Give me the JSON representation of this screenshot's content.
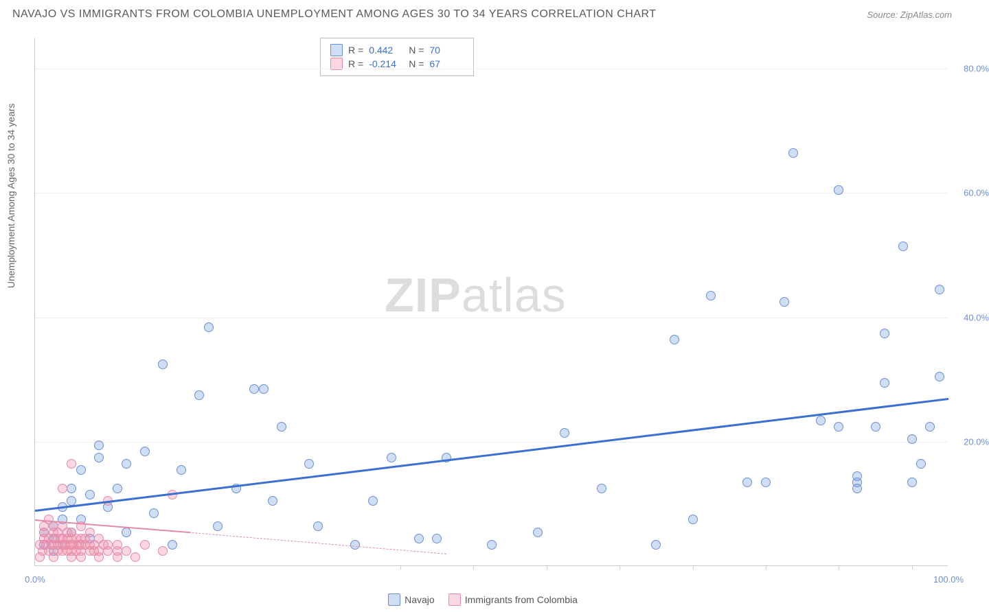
{
  "title": "NAVAJO VS IMMIGRANTS FROM COLOMBIA UNEMPLOYMENT AMONG AGES 30 TO 34 YEARS CORRELATION CHART",
  "source": "Source: ZipAtlas.com",
  "ylabel": "Unemployment Among Ages 30 to 34 years",
  "watermark_bold": "ZIP",
  "watermark_light": "atlas",
  "chart": {
    "type": "scatter",
    "background_color": "#ffffff",
    "grid_color": "#eeeeee",
    "axis_color": "#cccccc",
    "xlim": [
      0,
      100
    ],
    "ylim": [
      0,
      85
    ],
    "xticks": [
      0,
      100
    ],
    "xtick_labels": [
      "0.0%",
      "100.0%"
    ],
    "xtick_minors": [
      40,
      48,
      56,
      64,
      72,
      80,
      88,
      96
    ],
    "yticks": [
      20,
      40,
      60,
      80
    ],
    "ytick_labels": [
      "20.0%",
      "40.0%",
      "60.0%",
      "80.0%"
    ],
    "tick_label_color": "#6b8fd6",
    "label_fontsize": 14,
    "title_fontsize": 16,
    "marker_size": 14,
    "series": [
      {
        "name": "Navajo",
        "marker_fill": "rgba(120,160,220,0.35)",
        "marker_stroke": "#6b8fd6",
        "r": 0.442,
        "n": 70,
        "trend": {
          "x1": 0,
          "y1": 9,
          "x2": 100,
          "y2": 27,
          "width": 2.5,
          "color": "#3b6fd0",
          "dash": "solid"
        },
        "points": [
          [
            1,
            5
          ],
          [
            1,
            7
          ],
          [
            2,
            4
          ],
          [
            2,
            6
          ],
          [
            2,
            8
          ],
          [
            3,
            5
          ],
          [
            3,
            9
          ],
          [
            3,
            11
          ],
          [
            4,
            7
          ],
          [
            4,
            12
          ],
          [
            4,
            14
          ],
          [
            5,
            9
          ],
          [
            5,
            17
          ],
          [
            6,
            13
          ],
          [
            6,
            6
          ],
          [
            7,
            19
          ],
          [
            7,
            21
          ],
          [
            8,
            11
          ],
          [
            9,
            14
          ],
          [
            10,
            7
          ],
          [
            10,
            18
          ],
          [
            12,
            20
          ],
          [
            13,
            10
          ],
          [
            14,
            34
          ],
          [
            15,
            5
          ],
          [
            16,
            17
          ],
          [
            18,
            29
          ],
          [
            19,
            40
          ],
          [
            20,
            8
          ],
          [
            22,
            14
          ],
          [
            24,
            30
          ],
          [
            25,
            30
          ],
          [
            26,
            12
          ],
          [
            27,
            24
          ],
          [
            30,
            18
          ],
          [
            31,
            8
          ],
          [
            35,
            5
          ],
          [
            37,
            12
          ],
          [
            39,
            19
          ],
          [
            42,
            6
          ],
          [
            44,
            6
          ],
          [
            45,
            19
          ],
          [
            50,
            5
          ],
          [
            55,
            7
          ],
          [
            58,
            23
          ],
          [
            62,
            14
          ],
          [
            68,
            5
          ],
          [
            70,
            38
          ],
          [
            72,
            9
          ],
          [
            74,
            45
          ],
          [
            78,
            15
          ],
          [
            80,
            15
          ],
          [
            82,
            44
          ],
          [
            83,
            68
          ],
          [
            86,
            25
          ],
          [
            88,
            24
          ],
          [
            88,
            62
          ],
          [
            90,
            15
          ],
          [
            90,
            14
          ],
          [
            90,
            16
          ],
          [
            92,
            24
          ],
          [
            93,
            31
          ],
          [
            93,
            39
          ],
          [
            95,
            53
          ],
          [
            96,
            15
          ],
          [
            96,
            22
          ],
          [
            97,
            18
          ],
          [
            98,
            24
          ],
          [
            99,
            46
          ],
          [
            99,
            32
          ]
        ]
      },
      {
        "name": "Immigrants from Colombia",
        "marker_fill": "rgba(240,140,170,0.35)",
        "marker_stroke": "#e58aa8",
        "r": -0.214,
        "n": 67,
        "trend": {
          "x1": 0,
          "y1": 7.5,
          "x2": 45,
          "y2": 2,
          "width": 1.5,
          "color": "#e58aa8",
          "dash": "dashed"
        },
        "trend_solid": {
          "x1": 0,
          "y1": 7.5,
          "x2": 17,
          "y2": 5.5,
          "width": 2,
          "color": "#e58aa8"
        },
        "points": [
          [
            0.5,
            3
          ],
          [
            0.5,
            5
          ],
          [
            0.8,
            4
          ],
          [
            1,
            6
          ],
          [
            1,
            7
          ],
          [
            1,
            8
          ],
          [
            1.2,
            5
          ],
          [
            1.5,
            4
          ],
          [
            1.5,
            6
          ],
          [
            1.5,
            9
          ],
          [
            1.8,
            5
          ],
          [
            2,
            3
          ],
          [
            2,
            5
          ],
          [
            2,
            7
          ],
          [
            2,
            8
          ],
          [
            2.2,
            6
          ],
          [
            2.5,
            4
          ],
          [
            2.5,
            5
          ],
          [
            2.5,
            7
          ],
          [
            2.8,
            6
          ],
          [
            3,
            4
          ],
          [
            3,
            5
          ],
          [
            3,
            6
          ],
          [
            3,
            8
          ],
          [
            3,
            14
          ],
          [
            3.2,
            5
          ],
          [
            3.5,
            4
          ],
          [
            3.5,
            6
          ],
          [
            3.5,
            7
          ],
          [
            3.8,
            5
          ],
          [
            4,
            3
          ],
          [
            4,
            4
          ],
          [
            4,
            5
          ],
          [
            4,
            6
          ],
          [
            4,
            7
          ],
          [
            4,
            18
          ],
          [
            4.2,
            5
          ],
          [
            4.5,
            4
          ],
          [
            4.5,
            6
          ],
          [
            4.8,
            5
          ],
          [
            5,
            3
          ],
          [
            5,
            4
          ],
          [
            5,
            5
          ],
          [
            5,
            6
          ],
          [
            5,
            8
          ],
          [
            5.5,
            5
          ],
          [
            5.5,
            6
          ],
          [
            6,
            4
          ],
          [
            6,
            5
          ],
          [
            6,
            7
          ],
          [
            6.5,
            4
          ],
          [
            6.5,
            5
          ],
          [
            7,
            3
          ],
          [
            7,
            4
          ],
          [
            7,
            6
          ],
          [
            7.5,
            5
          ],
          [
            8,
            4
          ],
          [
            8,
            5
          ],
          [
            8,
            12
          ],
          [
            9,
            3
          ],
          [
            9,
            4
          ],
          [
            9,
            5
          ],
          [
            10,
            4
          ],
          [
            11,
            3
          ],
          [
            12,
            5
          ],
          [
            14,
            4
          ],
          [
            15,
            13
          ]
        ]
      }
    ]
  },
  "stats_box": {
    "rows": [
      {
        "swatch_fill": "rgba(120,160,220,0.35)",
        "swatch_stroke": "#6b8fd6",
        "r": "0.442",
        "n": "70"
      },
      {
        "swatch_fill": "rgba(240,140,170,0.35)",
        "swatch_stroke": "#e58aa8",
        "r": "-0.214",
        "n": "67"
      }
    ],
    "r_label": "R =",
    "n_label": "N ="
  },
  "legend": [
    {
      "swatch_fill": "rgba(120,160,220,0.35)",
      "swatch_stroke": "#6b8fd6",
      "label": "Navajo"
    },
    {
      "swatch_fill": "rgba(240,140,170,0.35)",
      "swatch_stroke": "#e58aa8",
      "label": "Immigrants from Colombia"
    }
  ]
}
